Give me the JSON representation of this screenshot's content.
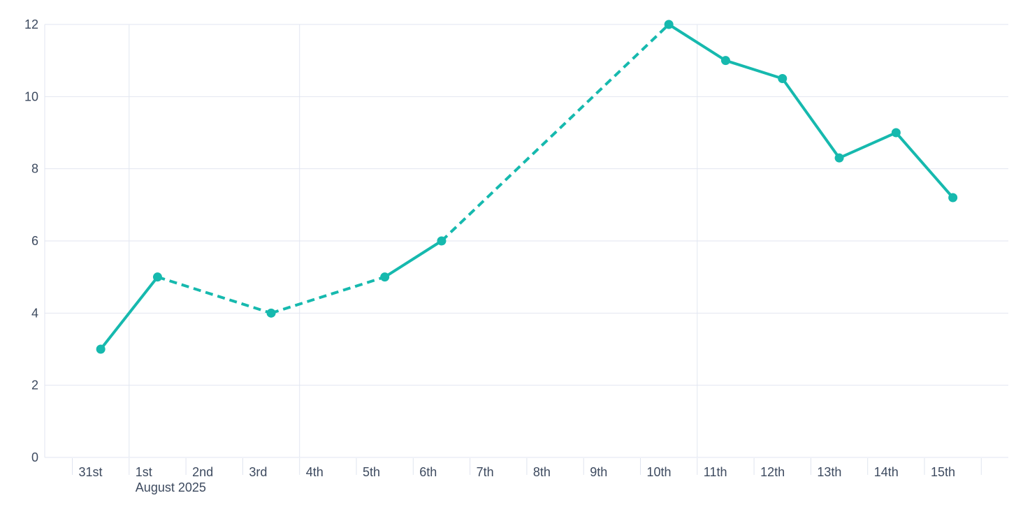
{
  "chart_data": {
    "type": "line",
    "title": "",
    "x_axis": {
      "month_label": "August 2025",
      "month_label_day_index": 1,
      "tick_labels": [
        "31st",
        "1st",
        "2nd",
        "3rd",
        "4th",
        "5th",
        "6th",
        "7th",
        "8th",
        "9th",
        "10th",
        "11th",
        "12th",
        "13th",
        "14th",
        "15th"
      ],
      "num_day_slots": 17,
      "vertical_gridline_day_indexes": [
        1,
        4,
        11
      ]
    },
    "y_axis": {
      "tick_labels": [
        "0",
        "2",
        "4",
        "6",
        "8",
        "10",
        "12"
      ],
      "tick_values": [
        0,
        2,
        4,
        6,
        8,
        10,
        12
      ],
      "range": [
        0,
        12
      ],
      "grid": true
    },
    "series": [
      {
        "name": "daily-values",
        "color": "#16b9ae",
        "marker": "circle",
        "line_style_rule": "segments bridging missing days are dashed, consecutive days solid",
        "points": [
          {
            "date": "31st",
            "day_index": 0,
            "value": 3
          },
          {
            "date": "1st",
            "day_index": 1,
            "value": 5
          },
          {
            "date": "3rd",
            "day_index": 3,
            "value": 4
          },
          {
            "date": "5th",
            "day_index": 5,
            "value": 5
          },
          {
            "date": "6th",
            "day_index": 6,
            "value": 6
          },
          {
            "date": "10th",
            "day_index": 10,
            "value": 12
          },
          {
            "date": "11th",
            "day_index": 11,
            "value": 11
          },
          {
            "date": "12th",
            "day_index": 12,
            "value": 10.5
          },
          {
            "date": "13th",
            "day_index": 13,
            "value": 8.3
          },
          {
            "date": "14th",
            "day_index": 14,
            "value": 9
          },
          {
            "date": "15th",
            "day_index": 15,
            "value": 7.2
          }
        ]
      }
    ],
    "legend": null,
    "colors": {
      "line": "#16b9ae",
      "grid": "#e2e6f1",
      "axis": "#dfe4ef",
      "text": "#3d4a5f",
      "background": "#ffffff"
    }
  }
}
